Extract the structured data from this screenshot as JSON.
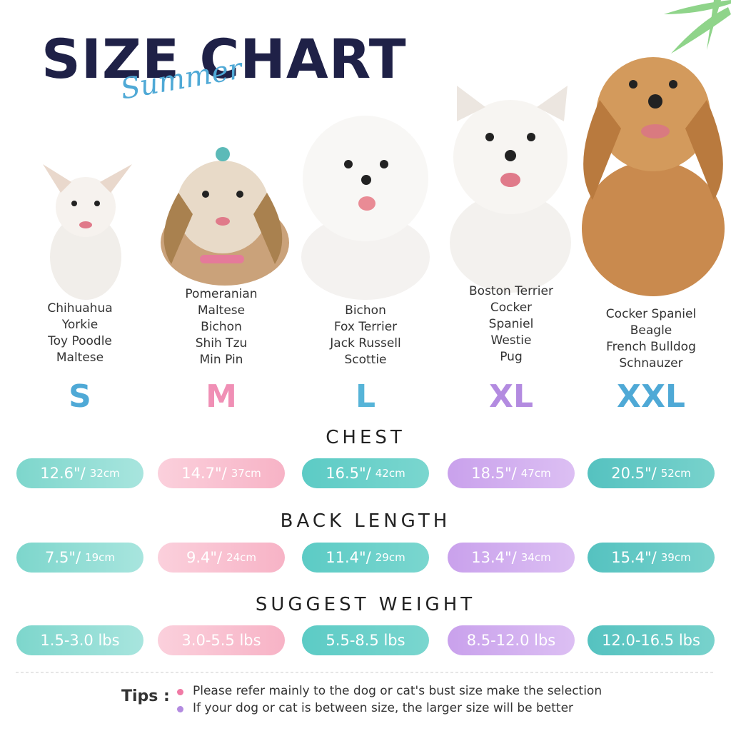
{
  "header": {
    "title": "SIZE CHART",
    "script": "Summer"
  },
  "sizes": [
    {
      "label": "S",
      "breeds": [
        "Chihuahua",
        "Yorkie",
        "Toy Poodle",
        "Maltese"
      ],
      "chest": {
        "in": "12.6\"/",
        "cm": "32cm"
      },
      "back_length": {
        "in": "7.5\"/",
        "cm": "19cm"
      },
      "weight": "1.5-3.0 lbs"
    },
    {
      "label": "M",
      "breeds": [
        "Pomeranian",
        "Maltese",
        "Bichon",
        "Shih Tzu",
        "Min Pin"
      ],
      "chest": {
        "in": "14.7\"/",
        "cm": "37cm"
      },
      "back_length": {
        "in": "9.4\"/",
        "cm": "24cm"
      },
      "weight": "3.0-5.5 lbs"
    },
    {
      "label": "L",
      "breeds": [
        "Bichon",
        "Fox Terrier",
        "Jack Russell",
        "Scottie"
      ],
      "chest": {
        "in": "16.5\"/",
        "cm": "42cm"
      },
      "back_length": {
        "in": "11.4\"/",
        "cm": "29cm"
      },
      "weight": "5.5-8.5 lbs"
    },
    {
      "label": "XL",
      "breeds": [
        "Boston Terrier",
        "Cocker",
        "Spaniel",
        "Westie",
        "Pug"
      ],
      "chest": {
        "in": "18.5\"/",
        "cm": "47cm"
      },
      "back_length": {
        "in": "13.4\"/",
        "cm": "34cm"
      },
      "weight": "8.5-12.0 lbs"
    },
    {
      "label": "XXL",
      "breeds": [
        "Cocker Spaniel",
        "Beagle",
        "French Bulldog",
        "Schnauzer"
      ],
      "chest": {
        "in": "20.5\"/",
        "cm": "52cm"
      },
      "back_length": {
        "in": "15.4\"/",
        "cm": "39cm"
      },
      "weight": "12.0-16.5 lbs"
    }
  ],
  "sections": {
    "chest": "CHEST",
    "back_length": "BACK LENGTH",
    "weight": "SUGGEST WEIGHT"
  },
  "tips": {
    "label": "Tips :",
    "items": [
      "Please refer mainly to the dog or cat's bust size make the selection",
      "If your dog or cat is between size, the larger size will be better"
    ]
  }
}
